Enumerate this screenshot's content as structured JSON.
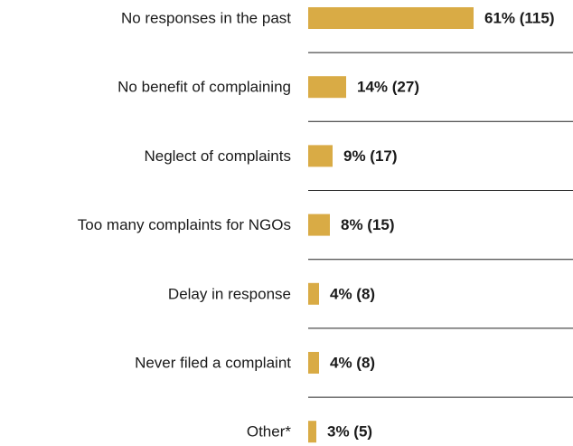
{
  "chart_data": {
    "type": "bar",
    "orientation": "horizontal",
    "categories": [
      "No responses in the past",
      "No benefit of complaining",
      "Neglect of complaints",
      "Too many complaints for NGOs",
      "Delay in response",
      "Never filed a complaint",
      "Other*"
    ],
    "values": [
      61,
      14,
      9,
      8,
      4,
      4,
      3
    ],
    "value_labels": [
      "61% (115)",
      "14% (27)",
      "9% (17)",
      "8% (15)",
      "4% (8)",
      "4% (8)",
      "3% (5)"
    ],
    "color": "#d9ab45"
  }
}
